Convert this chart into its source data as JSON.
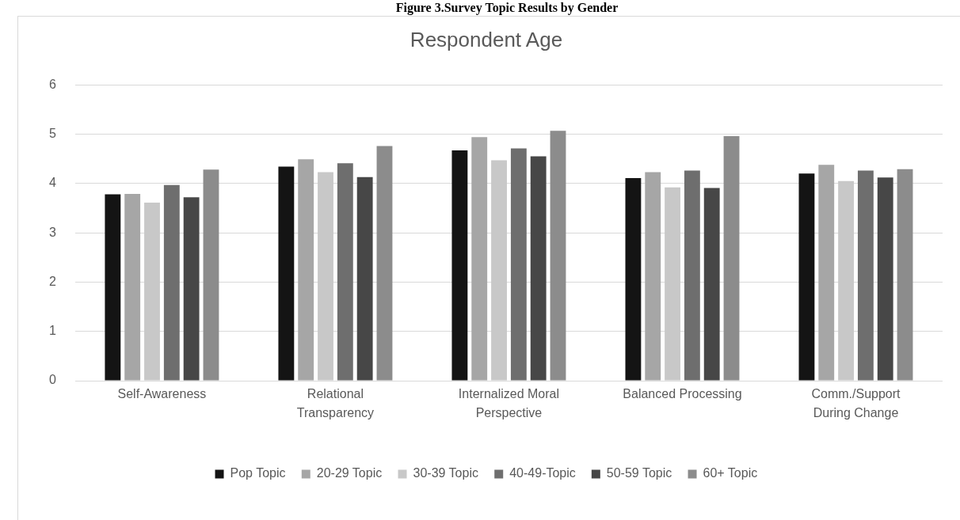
{
  "chart_data": {
    "type": "bar",
    "title": "Respondent Age",
    "annotations": [
      "Figure 3.Survey Topic Results by Gender"
    ],
    "categories": [
      "Self-Awareness",
      "Relational Transparency",
      "Internalized Moral Perspective",
      "Balanced Processing",
      "Comm./Support During Change"
    ],
    "series": [
      {
        "name": "Pop Topic",
        "color": "#141414",
        "values": [
          3.78,
          4.34,
          4.67,
          4.11,
          4.2
        ]
      },
      {
        "name": "20-29 Topic",
        "color": "#a6a6a6",
        "values": [
          3.79,
          4.49,
          4.94,
          4.23,
          4.38
        ]
      },
      {
        "name": "30-39 Topic",
        "color": "#c8c8c8",
        "values": [
          3.61,
          4.23,
          4.47,
          3.92,
          4.05
        ]
      },
      {
        "name": "40-49-Topic",
        "color": "#6e6e6e",
        "values": [
          3.97,
          4.41,
          4.71,
          4.26,
          4.26
        ]
      },
      {
        "name": "50-59 Topic",
        "color": "#474747",
        "values": [
          3.72,
          4.13,
          4.55,
          3.91,
          4.12
        ]
      },
      {
        "name": "60+ Topic",
        "color": "#8c8c8c",
        "values": [
          4.28,
          4.76,
          5.07,
          4.96,
          4.29
        ]
      }
    ],
    "ylim": [
      0,
      6
    ],
    "yticks": [
      0,
      1,
      2,
      3,
      4,
      5,
      6
    ],
    "grid": "y",
    "legend": "bottom"
  }
}
